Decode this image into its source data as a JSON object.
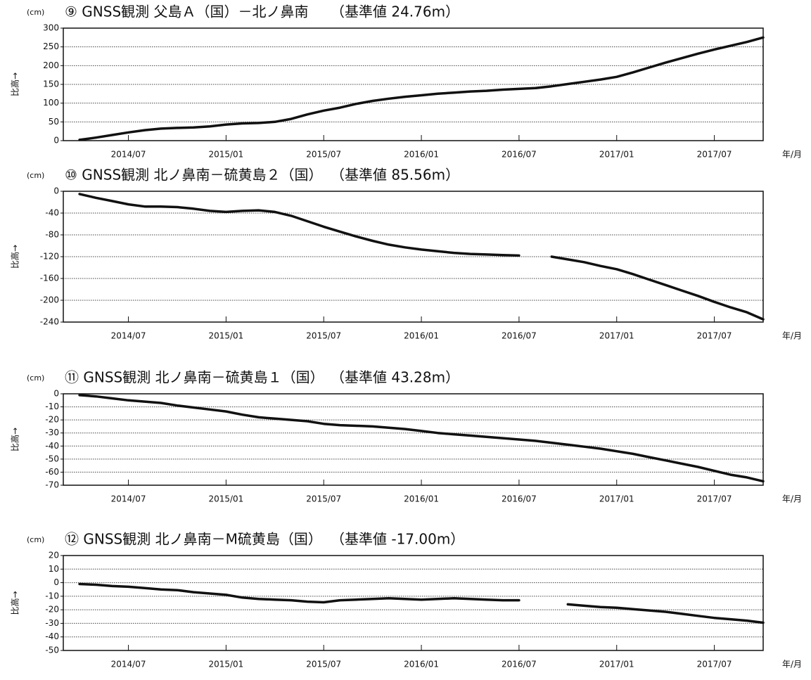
{
  "chart_data": [
    {
      "type": "line",
      "title": "⑨ GNSS観測 父島Ａ（国）－北ノ鼻南",
      "reference": "（基準値 24.76m）",
      "unit": "(cm)",
      "ylabel": "比高→",
      "xunit": "年/月",
      "xlim": [
        "2014/03",
        "2017/10"
      ],
      "xticks": [
        "2014/07",
        "2015/01",
        "2015/07",
        "2016/01",
        "2016/07",
        "2017/01",
        "2017/07"
      ],
      "ylim": [
        0,
        300
      ],
      "yticks": [
        0,
        50,
        100,
        150,
        200,
        250,
        300
      ],
      "grid": true,
      "color": "#111111",
      "x": [
        "2014/04",
        "2014/05",
        "2014/06",
        "2014/07",
        "2014/08",
        "2014/09",
        "2014/10",
        "2014/11",
        "2014/12",
        "2015/01",
        "2015/02",
        "2015/03",
        "2015/04",
        "2015/05",
        "2015/06",
        "2015/07",
        "2015/08",
        "2015/09",
        "2015/10",
        "2015/11",
        "2015/12",
        "2016/01",
        "2016/02",
        "2016/03",
        "2016/04",
        "2016/05",
        "2016/06",
        "2016/07",
        "2016/08",
        "2016/09",
        "2016/10",
        "2016/11",
        "2016/12",
        "2017/01",
        "2017/02",
        "2017/03",
        "2017/04",
        "2017/05",
        "2017/06",
        "2017/07",
        "2017/08",
        "2017/09",
        "2017/10"
      ],
      "values": [
        2,
        8,
        15,
        22,
        28,
        32,
        34,
        35,
        38,
        43,
        46,
        47,
        50,
        58,
        70,
        80,
        88,
        98,
        106,
        112,
        117,
        121,
        125,
        128,
        131,
        133,
        136,
        138,
        140,
        145,
        151,
        157,
        163,
        170,
        182,
        195,
        208,
        220,
        232,
        243,
        253,
        263,
        275
      ]
    },
    {
      "type": "line",
      "title": "⑩ GNSS観測 北ノ鼻南－硫黄島２（国）",
      "reference": "（基準値 85.56m）",
      "unit": "(cm)",
      "ylabel": "比高→",
      "xunit": "年/月",
      "xlim": [
        "2014/03",
        "2017/10"
      ],
      "xticks": [
        "2014/07",
        "2015/01",
        "2015/07",
        "2016/01",
        "2016/07",
        "2017/01",
        "2017/07"
      ],
      "ylim": [
        -240,
        0
      ],
      "yticks": [
        0,
        -40,
        -80,
        -120,
        -160,
        -200,
        -240
      ],
      "grid": true,
      "color": "#111111",
      "x": [
        "2014/04",
        "2014/05",
        "2014/06",
        "2014/07",
        "2014/08",
        "2014/09",
        "2014/10",
        "2014/11",
        "2014/12",
        "2015/01",
        "2015/02",
        "2015/03",
        "2015/04",
        "2015/05",
        "2015/06",
        "2015/07",
        "2015/08",
        "2015/09",
        "2015/10",
        "2015/11",
        "2015/12",
        "2016/01",
        "2016/02",
        "2016/03",
        "2016/04",
        "2016/05",
        "2016/06",
        "2016/07",
        "2016/08",
        "2016/09",
        "2016/10",
        "2016/11",
        "2016/12",
        "2017/01",
        "2017/02",
        "2017/03",
        "2017/04",
        "2017/05",
        "2017/06",
        "2017/07",
        "2017/08",
        "2017/09",
        "2017/10"
      ],
      "values": [
        -5,
        -12,
        -18,
        -24,
        -28,
        -28,
        -29,
        -32,
        -36,
        -38,
        -36,
        -35,
        -38,
        -45,
        -55,
        -65,
        -74,
        -83,
        -91,
        -98,
        -103,
        -107,
        -110,
        -113,
        -115,
        -116,
        -117,
        -118,
        null,
        -120,
        -125,
        -130,
        -137,
        -143,
        -152,
        -162,
        -172,
        -182,
        -192,
        -203,
        -213,
        -222,
        -235
      ]
    },
    {
      "type": "line",
      "title": "⑪ GNSS観測 北ノ鼻南－硫黄島１（国）",
      "reference": "（基準値 43.28m）",
      "unit": "(cm)",
      "ylabel": "比高→",
      "xunit": "年/月",
      "xlim": [
        "2014/03",
        "2017/10"
      ],
      "xticks": [
        "2014/07",
        "2015/01",
        "2015/07",
        "2016/01",
        "2016/07",
        "2017/01",
        "2017/07"
      ],
      "ylim": [
        -70,
        0
      ],
      "yticks": [
        0,
        -10,
        -20,
        -30,
        -40,
        -50,
        -60,
        -70
      ],
      "grid": true,
      "color": "#111111",
      "x": [
        "2014/04",
        "2014/05",
        "2014/06",
        "2014/07",
        "2014/08",
        "2014/09",
        "2014/10",
        "2014/11",
        "2014/12",
        "2015/01",
        "2015/02",
        "2015/03",
        "2015/04",
        "2015/05",
        "2015/06",
        "2015/07",
        "2015/08",
        "2015/09",
        "2015/10",
        "2015/11",
        "2015/12",
        "2016/01",
        "2016/02",
        "2016/03",
        "2016/04",
        "2016/05",
        "2016/06",
        "2016/07",
        "2016/08",
        "2016/09",
        "2016/10",
        "2016/11",
        "2016/12",
        "2017/01",
        "2017/02",
        "2017/03",
        "2017/04",
        "2017/05",
        "2017/06",
        "2017/07",
        "2017/08",
        "2017/09",
        "2017/10"
      ],
      "values": [
        -1,
        -2,
        -3.5,
        -5,
        -6,
        -7,
        -9,
        -10.5,
        -12,
        -13.5,
        -16,
        -18,
        -19,
        -20,
        -21,
        -23,
        -24,
        -24.5,
        -25,
        -26,
        -27,
        -28.5,
        -30,
        -31,
        -32,
        -33,
        -34,
        -35,
        -36,
        -37.5,
        -39,
        -40.5,
        -42,
        -44,
        -46,
        -48.5,
        -51,
        -53.5,
        -56,
        -59,
        -62,
        -64,
        -67
      ]
    },
    {
      "type": "line",
      "title": "⑫ GNSS観測 北ノ鼻南－M硫黄島（国）",
      "reference": "（基準値 -17.00m）",
      "unit": "(cm)",
      "ylabel": "比高→",
      "xunit": "年/月",
      "xlim": [
        "2014/03",
        "2017/10"
      ],
      "xticks": [
        "2014/07",
        "2015/01",
        "2015/07",
        "2016/01",
        "2016/07",
        "2017/01",
        "2017/07"
      ],
      "ylim": [
        -50,
        20
      ],
      "yticks": [
        20,
        10,
        0,
        -10,
        -20,
        -30,
        -40,
        -50
      ],
      "grid": true,
      "color": "#111111",
      "x": [
        "2014/04",
        "2014/05",
        "2014/06",
        "2014/07",
        "2014/08",
        "2014/09",
        "2014/10",
        "2014/11",
        "2014/12",
        "2015/01",
        "2015/02",
        "2015/03",
        "2015/04",
        "2015/05",
        "2015/06",
        "2015/07",
        "2015/08",
        "2015/09",
        "2015/10",
        "2015/11",
        "2015/12",
        "2016/01",
        "2016/02",
        "2016/03",
        "2016/04",
        "2016/05",
        "2016/06",
        "2016/07",
        "2016/08",
        "2016/09",
        "2016/10",
        "2016/11",
        "2016/12",
        "2017/01",
        "2017/02",
        "2017/03",
        "2017/04",
        "2017/05",
        "2017/06",
        "2017/07",
        "2017/08",
        "2017/09",
        "2017/10"
      ],
      "values": [
        -1,
        -1.5,
        -2.5,
        -3,
        -4,
        -5,
        -5.5,
        -7,
        -8,
        -9,
        -11,
        -12,
        -12.5,
        -13,
        -14,
        -14.5,
        -13,
        -12.5,
        -12,
        -11.5,
        -12,
        -12.5,
        -12,
        -11.5,
        -12,
        -12.5,
        -13,
        -13,
        null,
        null,
        -16,
        -17,
        -18,
        -18.5,
        -19.5,
        -20.5,
        -21.5,
        -23,
        -24.5,
        -26,
        -27,
        -28,
        -29.5
      ]
    }
  ]
}
